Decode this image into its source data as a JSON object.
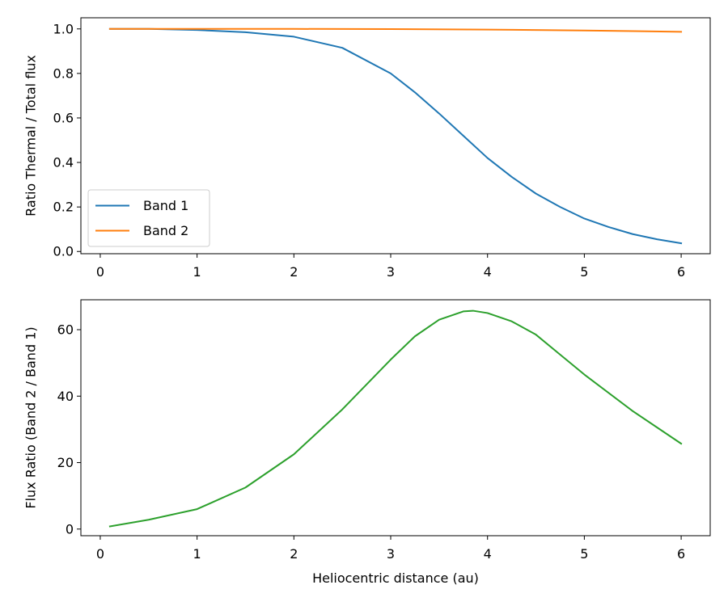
{
  "chart_data": [
    {
      "type": "line",
      "xlabel": "",
      "ylabel": "Ratio Thermal / Total flux",
      "xlim": [
        -0.2,
        6.3
      ],
      "ylim": [
        -0.01,
        1.05
      ],
      "xticks": [
        "0",
        "1",
        "2",
        "3",
        "4",
        "5",
        "6"
      ],
      "yticks": [
        "0.0",
        "0.2",
        "0.4",
        "0.6",
        "0.8",
        "1.0"
      ],
      "legend_placement": "lower-left",
      "grid": false,
      "series": [
        {
          "name": "Band 1",
          "color": "#1f77b4",
          "x": [
            0.1,
            0.5,
            1.0,
            1.5,
            2.0,
            2.5,
            3.0,
            3.25,
            3.5,
            3.75,
            4.0,
            4.25,
            4.5,
            4.75,
            5.0,
            5.25,
            5.5,
            5.75,
            6.0
          ],
          "y": [
            1.0,
            1.0,
            0.995,
            0.985,
            0.965,
            0.915,
            0.8,
            0.715,
            0.62,
            0.52,
            0.42,
            0.335,
            0.26,
            0.2,
            0.148,
            0.11,
            0.078,
            0.055,
            0.037
          ]
        },
        {
          "name": "Band 2",
          "color": "#ff7f0e",
          "x": [
            0.1,
            1.0,
            2.0,
            3.0,
            4.0,
            5.0,
            5.5,
            6.0
          ],
          "y": [
            1.0,
            1.0,
            1.0,
            0.999,
            0.997,
            0.993,
            0.99,
            0.987
          ]
        }
      ]
    },
    {
      "type": "line",
      "xlabel": "Heliocentric distance (au)",
      "ylabel": "Flux Ratio (Band 2 / Band 1)",
      "xlim": [
        -0.2,
        6.3
      ],
      "ylim": [
        -2,
        69
      ],
      "xticks": [
        "0",
        "1",
        "2",
        "3",
        "4",
        "5",
        "6"
      ],
      "yticks": [
        "0",
        "20",
        "40",
        "60"
      ],
      "grid": false,
      "series": [
        {
          "name": "",
          "color": "#2ca02c",
          "x": [
            0.1,
            0.5,
            1.0,
            1.5,
            2.0,
            2.5,
            3.0,
            3.25,
            3.5,
            3.75,
            3.85,
            4.0,
            4.25,
            4.5,
            4.75,
            5.0,
            5.5,
            6.0
          ],
          "y": [
            0.8,
            2.8,
            6.0,
            12.5,
            22.5,
            36.0,
            51.0,
            58.0,
            63.0,
            65.5,
            65.7,
            65.0,
            62.5,
            58.5,
            52.5,
            46.5,
            35.5,
            25.7
          ]
        }
      ]
    }
  ]
}
